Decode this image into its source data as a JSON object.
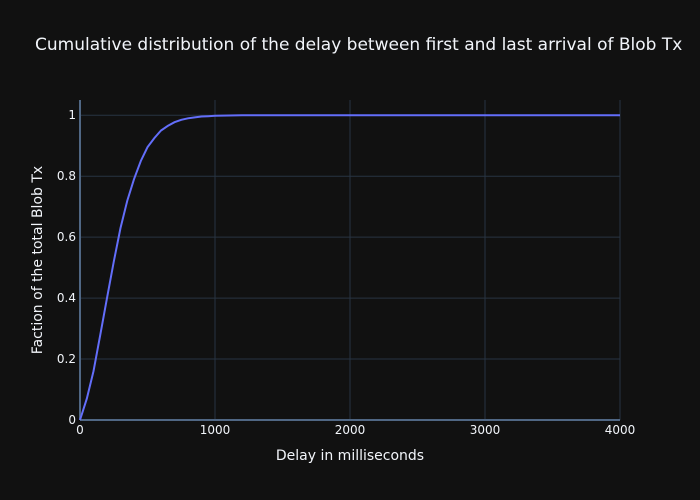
{
  "chart_data": {
    "type": "line",
    "title": "Cumulative distribution of the delay between first and last arrival of Blob Tx",
    "xlabel": "Delay in milliseconds",
    "ylabel": "Faction of the total Blob Tx",
    "xlim": [
      0,
      4000
    ],
    "ylim": [
      0,
      1.05
    ],
    "x_ticks": [
      0,
      1000,
      2000,
      3000,
      4000
    ],
    "x_tick_labels": [
      "0",
      "1000",
      "2000",
      "3000",
      "4000"
    ],
    "y_ticks": [
      0,
      0.2,
      0.4,
      0.6,
      0.8,
      1
    ],
    "y_tick_labels": [
      "0",
      "0.2",
      "0.4",
      "0.6",
      "0.8",
      "1"
    ],
    "grid": true,
    "series": [
      {
        "color": "#636efa",
        "x": [
          0,
          50,
          100,
          150,
          200,
          250,
          300,
          350,
          400,
          450,
          500,
          550,
          600,
          650,
          700,
          750,
          800,
          850,
          900,
          950,
          1000,
          1100,
          1200,
          1400,
          1600,
          2000,
          3000,
          4000
        ],
        "y": [
          0,
          0.07,
          0.16,
          0.28,
          0.4,
          0.52,
          0.63,
          0.72,
          0.79,
          0.85,
          0.895,
          0.925,
          0.95,
          0.965,
          0.977,
          0.985,
          0.99,
          0.993,
          0.996,
          0.997,
          0.998,
          0.999,
          1.0,
          1.0,
          1.0,
          1.0,
          1.0,
          1.0
        ]
      }
    ]
  }
}
